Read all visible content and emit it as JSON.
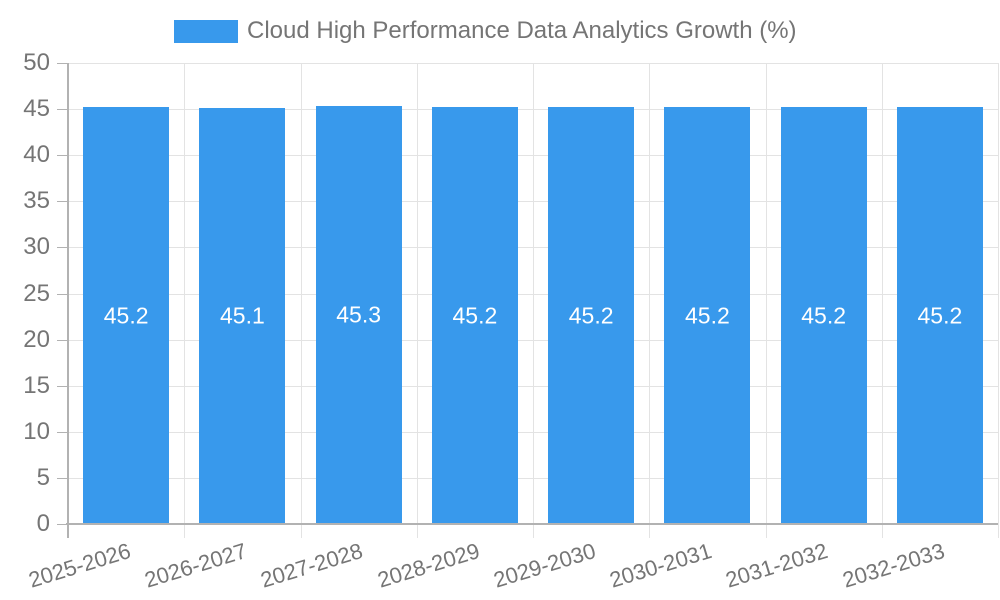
{
  "chart_data": {
    "type": "bar",
    "title": "Cloud High Performance Data Analytics Growth (%)",
    "series_name": "Cloud High Performance Data Analytics Growth (%)",
    "categories": [
      "2025-2026",
      "2026-2027",
      "2027-2028",
      "2028-2029",
      "2029-2030",
      "2030-2031",
      "2031-2032",
      "2032-2033"
    ],
    "values": [
      45.2,
      45.1,
      45.3,
      45.2,
      45.2,
      45.2,
      45.2,
      45.2
    ],
    "bar_labels": [
      "45.2",
      "45.1",
      "45.3",
      "45.2",
      "45.2",
      "45.2",
      "45.2",
      "45.2"
    ],
    "xlabel": "",
    "ylabel": "",
    "ylim": [
      0,
      50
    ],
    "ytick_step": 5,
    "ytick_labels": [
      "0",
      "5",
      "10",
      "15",
      "20",
      "25",
      "30",
      "35",
      "40",
      "45",
      "50"
    ],
    "grid": true,
    "legend_position": "top",
    "colors": {
      "bar": "#3899EC",
      "grid": "#E3E3E3",
      "axis": "#B2B2B2",
      "tick-text": "#757575",
      "bar-label": "#FFFFFF",
      "background": "#FFFFFF"
    }
  }
}
